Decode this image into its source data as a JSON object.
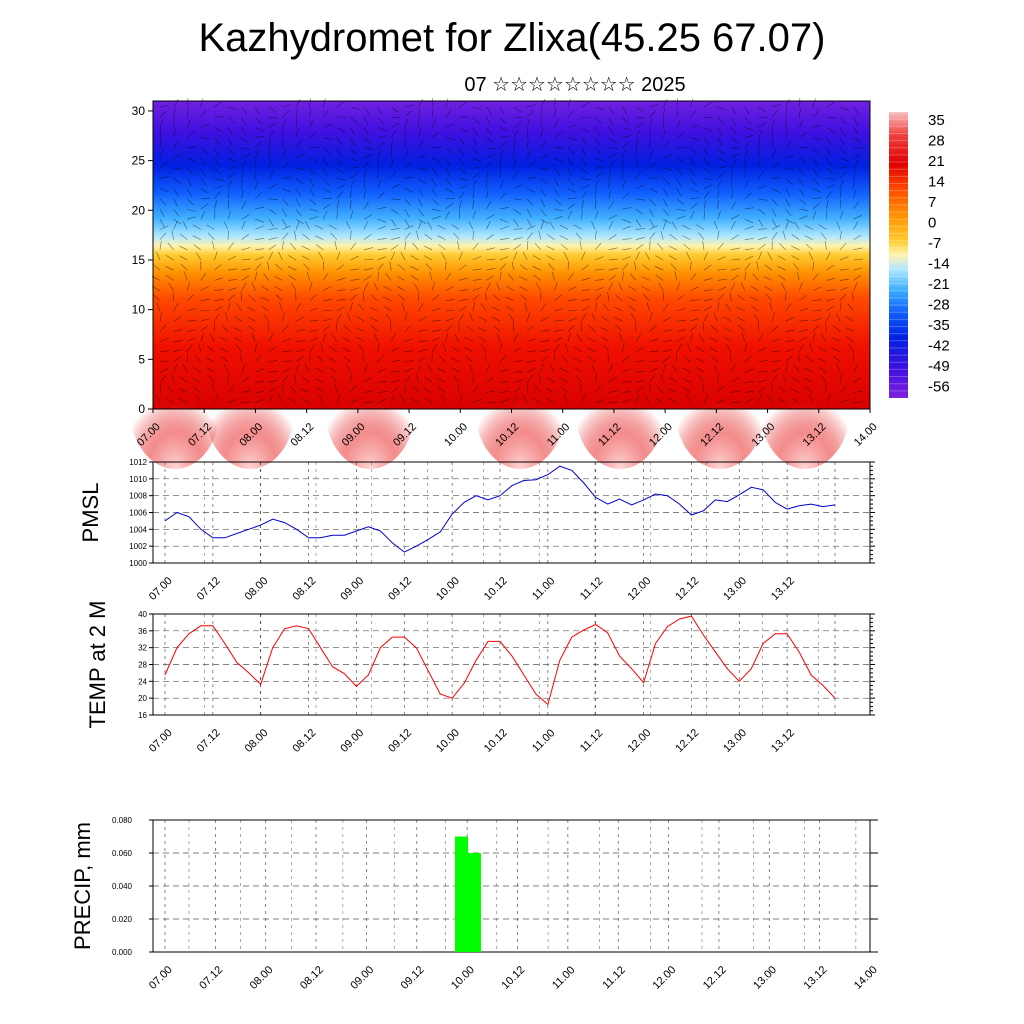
{
  "title": "Kazhydromet for Zlixa(45.25 67.07)",
  "subtitle": "07 ☆☆☆☆☆☆☆☆ 2025",
  "x_ticks": [
    "07.00",
    "07.12",
    "08.00",
    "08.12",
    "09.00",
    "09.12",
    "10.00",
    "10.12",
    "11.00",
    "11.12",
    "12.00",
    "12.12",
    "13.00",
    "13.12",
    "14.00"
  ],
  "colors": {
    "pmsl": "#0000cc",
    "temp": "#ff0000",
    "precip": "#00ff00"
  },
  "chart_data": [
    {
      "type": "heatmap",
      "title": "",
      "ylabel": "",
      "y_ticks": [
        "0",
        "5",
        "10",
        "15",
        "20",
        "25",
        "30"
      ],
      "ylim": [
        0,
        31
      ],
      "colorbar_labels": [
        "35",
        "28",
        "21",
        "14",
        "7",
        "0",
        "-7",
        "-14",
        "-21",
        "-28",
        "-35",
        "-42",
        "-49",
        "-56"
      ],
      "colorscale": [
        "#f6c0c0",
        "#f04040",
        "#e00000",
        "#ff2a00",
        "#ff6000",
        "#ff9a00",
        "#ffcf40",
        "#fff0a0",
        "#c0f0ff",
        "#40c0ff",
        "#0070ff",
        "#0020e0",
        "#4010e0",
        "#8020e0"
      ],
      "overlay": "wind barbs"
    },
    {
      "type": "line",
      "ylabel": "PMSL",
      "y_ticks": [
        "1000",
        "1002",
        "1004",
        "1006",
        "1008",
        "1010",
        "1012"
      ],
      "ylim": [
        1000,
        1012
      ],
      "series": [
        {
          "values": [
            1005,
            1006,
            1005.5,
            1004,
            1003,
            1003,
            1003.5,
            1004,
            1004.5,
            1005.2,
            1004.8,
            1004,
            1003,
            1003,
            1003.3,
            1003.3,
            1003.8,
            1004.3,
            1003.8,
            1002.4,
            1001.3,
            1002,
            1002.8,
            1003.7,
            1005.8,
            1007.2,
            1008,
            1007.5,
            1008,
            1009.2,
            1009.8,
            1009.9,
            1010.5,
            1011.5,
            1011,
            1009.5,
            1007.8,
            1007,
            1007.6,
            1006.9,
            1007.5,
            1008.2,
            1008,
            1007,
            1005.7,
            1006.2,
            1007.5,
            1007.3,
            1008.1,
            1009,
            1008.7,
            1007.2,
            1006.4,
            1006.8,
            1007,
            1006.7,
            1006.9
          ]
        }
      ]
    },
    {
      "type": "line",
      "ylabel": "TEMP at 2 M",
      "y_ticks": [
        "16",
        "20",
        "24",
        "28",
        "32",
        "36",
        "40"
      ],
      "ylim": [
        16,
        40
      ],
      "series": [
        {
          "values": [
            25.5,
            32,
            35.3,
            37.2,
            37.2,
            33,
            28.5,
            26,
            23.3,
            32,
            36.5,
            37.2,
            36.5,
            32,
            27.5,
            25.8,
            22.8,
            25.5,
            32,
            34.5,
            34.5,
            32,
            26.5,
            21,
            20,
            23.5,
            29,
            33.5,
            33.5,
            30,
            25.5,
            21,
            18.5,
            29,
            34.5,
            36.2,
            37.5,
            35.5,
            30,
            27,
            23.7,
            33,
            37,
            38.8,
            39.5,
            35,
            31,
            27,
            24,
            27,
            33,
            35.3,
            35.3,
            31,
            25.5,
            23,
            20
          ]
        }
      ]
    },
    {
      "type": "bar",
      "ylabel": "PRECIP, mm",
      "y_ticks": [
        "0.000",
        "0.020",
        "0.040",
        "0.060",
        "0.080"
      ],
      "ylim": [
        0,
        0.08
      ],
      "series": [
        {
          "x": [
            "09.21",
            "10.00"
          ],
          "values": [
            0.07,
            0.06
          ]
        }
      ]
    }
  ]
}
